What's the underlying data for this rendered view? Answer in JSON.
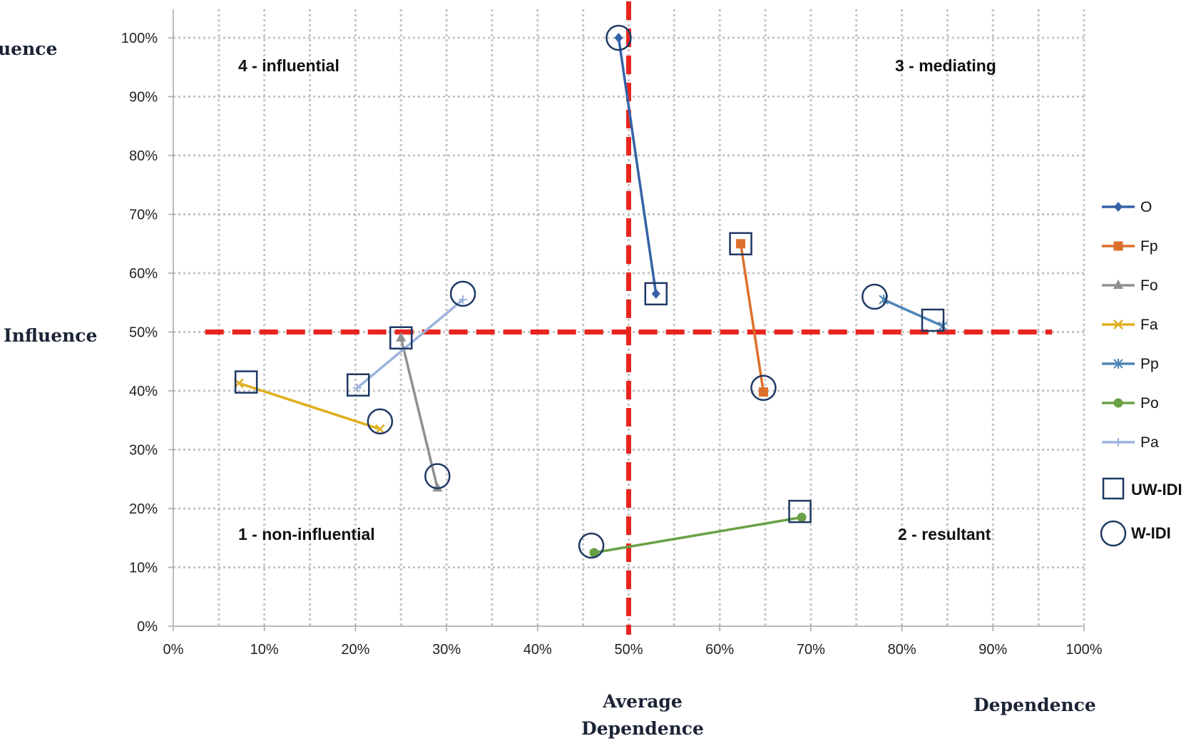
{
  "chart_data": {
    "type": "scatter",
    "xlabel": "Dependence",
    "ylabel": "Influence",
    "top_label": "uence",
    "xlim": [
      0,
      100
    ],
    "ylim": [
      0,
      100
    ],
    "x_ticks": [
      0,
      10,
      20,
      30,
      40,
      50,
      60,
      70,
      80,
      90,
      100
    ],
    "y_ticks": [
      0,
      10,
      20,
      30,
      40,
      50,
      60,
      70,
      80,
      90,
      100
    ],
    "tick_format": "percent",
    "grid": true,
    "reference_lines": {
      "vertical": {
        "value": 50,
        "label_line1": "Average",
        "label_line2": "Dependence",
        "color": "#e8251f"
      },
      "horizontal": {
        "value": 50,
        "color": "#e8251f"
      }
    },
    "quadrants": {
      "top_left": "4 - influential",
      "top_right": "3 - mediating",
      "bottom_left": "1 - non-influential",
      "bottom_right": "2 - resultant"
    },
    "series": [
      {
        "name": "O",
        "color": "#3562a8",
        "marker": "diamond",
        "points": [
          [
            48.9,
            100
          ],
          [
            53.0,
            56.5
          ]
        ]
      },
      {
        "name": "Fp",
        "color": "#dd6f2c",
        "marker": "square",
        "points": [
          [
            62.3,
            65.0
          ],
          [
            64.8,
            39.8
          ]
        ]
      },
      {
        "name": "Fo",
        "color": "#8f8f8f",
        "marker": "triangle",
        "points": [
          [
            25.0,
            49.0
          ],
          [
            29.0,
            23.5
          ]
        ]
      },
      {
        "name": "Fa",
        "color": "#e0ae1d",
        "marker": "x",
        "points": [
          [
            7.2,
            41.3
          ],
          [
            22.7,
            33.5
          ]
        ]
      },
      {
        "name": "Pp",
        "color": "#4f86b8",
        "marker": "asterisk",
        "points": [
          [
            78.0,
            55.5
          ],
          [
            84.5,
            51.0
          ]
        ]
      },
      {
        "name": "Po",
        "color": "#6aa046",
        "marker": "circle",
        "points": [
          [
            46.2,
            12.5
          ],
          [
            69.0,
            18.5
          ]
        ]
      },
      {
        "name": "Pa",
        "color": "#9bb3dc",
        "marker": "plus",
        "points": [
          [
            20.2,
            40.5
          ],
          [
            31.8,
            55.5
          ]
        ]
      }
    ],
    "highlights": {
      "uw_idi_squares": [
        [
          8.0,
          41.5
        ],
        [
          20.3,
          41.0
        ],
        [
          25.0,
          49.0
        ],
        [
          53.0,
          56.5
        ],
        [
          62.3,
          65.0
        ],
        [
          68.8,
          19.5
        ],
        [
          83.4,
          52.0
        ]
      ],
      "w_idi_circles": [
        [
          48.9,
          100
        ],
        [
          31.8,
          56.5
        ],
        [
          22.7,
          34.8
        ],
        [
          29.0,
          25.5
        ],
        [
          64.8,
          40.5
        ],
        [
          77.0,
          56.0
        ],
        [
          45.9,
          13.7
        ]
      ]
    },
    "legend": {
      "position": "right",
      "square_label": "UW-IDI",
      "circle_label": "W-IDI",
      "frame_color": "#1f3864"
    }
  }
}
